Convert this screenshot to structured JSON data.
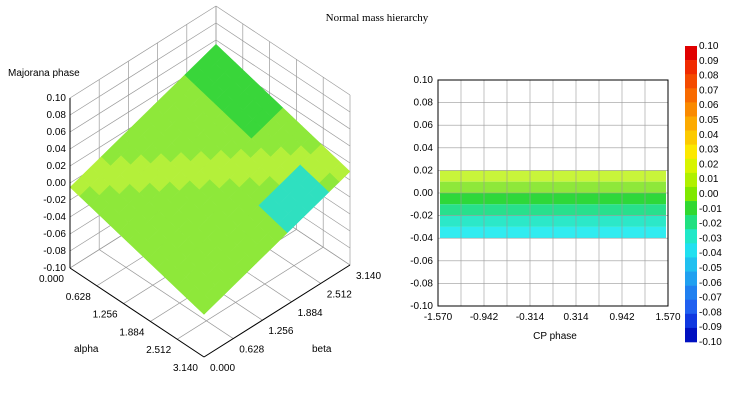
{
  "title": "Normal mass hierarchy",
  "colors": {
    "grid": "#9a9a9a",
    "axis": "#000000",
    "surface_main": "#8ee83a",
    "surface_band": "#b4f03a",
    "surface_top": "#39d63a",
    "surface_low": "#2fe0c0",
    "surface_edge": "#33e4f0",
    "background": "#ffffff"
  },
  "chart_data": [
    {
      "type": "surface",
      "zlabel": "Majorana phase",
      "xlabel": "alpha",
      "ylabel": "beta",
      "zlim": [
        -0.1,
        0.1
      ],
      "xlim": [
        0,
        3.14
      ],
      "ylim": [
        0,
        3.14
      ],
      "z_ticks": [
        "0.10",
        "0.08",
        "0.06",
        "0.04",
        "0.02",
        "0.00",
        "-0.02",
        "-0.04",
        "-0.06",
        "-0.08",
        "-0.10"
      ],
      "alpha_ticks": [
        "0.000",
        "0.628",
        "1.256",
        "1.884",
        "2.512",
        "3.140"
      ],
      "beta_ticks": [
        "0.000",
        "0.628",
        "1.256",
        "1.884",
        "2.512",
        "3.140"
      ],
      "grid": true
    },
    {
      "type": "scatter",
      "xlabel": "CP phase",
      "ylabel": "",
      "xlim": [
        -1.57,
        1.57
      ],
      "ylim": [
        -0.1,
        0.1
      ],
      "x_ticks": [
        "-1.570",
        "-0.942",
        "-0.314",
        "0.314",
        "0.942",
        "1.570"
      ],
      "y_ticks": [
        "0.10",
        "0.08",
        "0.06",
        "0.04",
        "0.02",
        "0.00",
        "-0.02",
        "-0.04",
        "-0.06",
        "-0.08",
        "-0.10"
      ],
      "filled_region": {
        "y_min": -0.04,
        "y_max": 0.02,
        "x_min": -1.57,
        "x_max": 1.57
      },
      "bands": [
        {
          "y0": 0.02,
          "y1": 0.01,
          "color": "#c8f53a"
        },
        {
          "y0": 0.01,
          "y1": 0.0,
          "color": "#8ee83a"
        },
        {
          "y0": 0.0,
          "y1": -0.01,
          "color": "#2ed83a"
        },
        {
          "y0": -0.01,
          "y1": -0.02,
          "color": "#28e08c"
        },
        {
          "y0": -0.02,
          "y1": -0.03,
          "color": "#2ce8c8"
        },
        {
          "y0": -0.03,
          "y1": -0.04,
          "color": "#30ecf0"
        }
      ],
      "grid": true
    }
  ],
  "colorbar": {
    "range": [
      -0.1,
      0.1
    ],
    "labels": [
      "0.10",
      "0.09",
      "0.08",
      "0.07",
      "0.06",
      "0.05",
      "0.04",
      "0.03",
      "0.02",
      "0.01",
      "0.00",
      "-0.01",
      "-0.02",
      "-0.03",
      "-0.04",
      "-0.05",
      "-0.06",
      "-0.07",
      "-0.08",
      "-0.09",
      "-0.10"
    ],
    "colors": [
      "#e00000",
      "#f02a00",
      "#f44a00",
      "#f86a00",
      "#fa8a00",
      "#fcaa00",
      "#fcca00",
      "#fce800",
      "#d8f400",
      "#b0f000",
      "#80e800",
      "#30d830",
      "#20e080",
      "#20e8c8",
      "#20e0f0",
      "#20c0f0",
      "#20a0f0",
      "#2080f0",
      "#2060f0",
      "#1038e0",
      "#0010c0"
    ]
  }
}
